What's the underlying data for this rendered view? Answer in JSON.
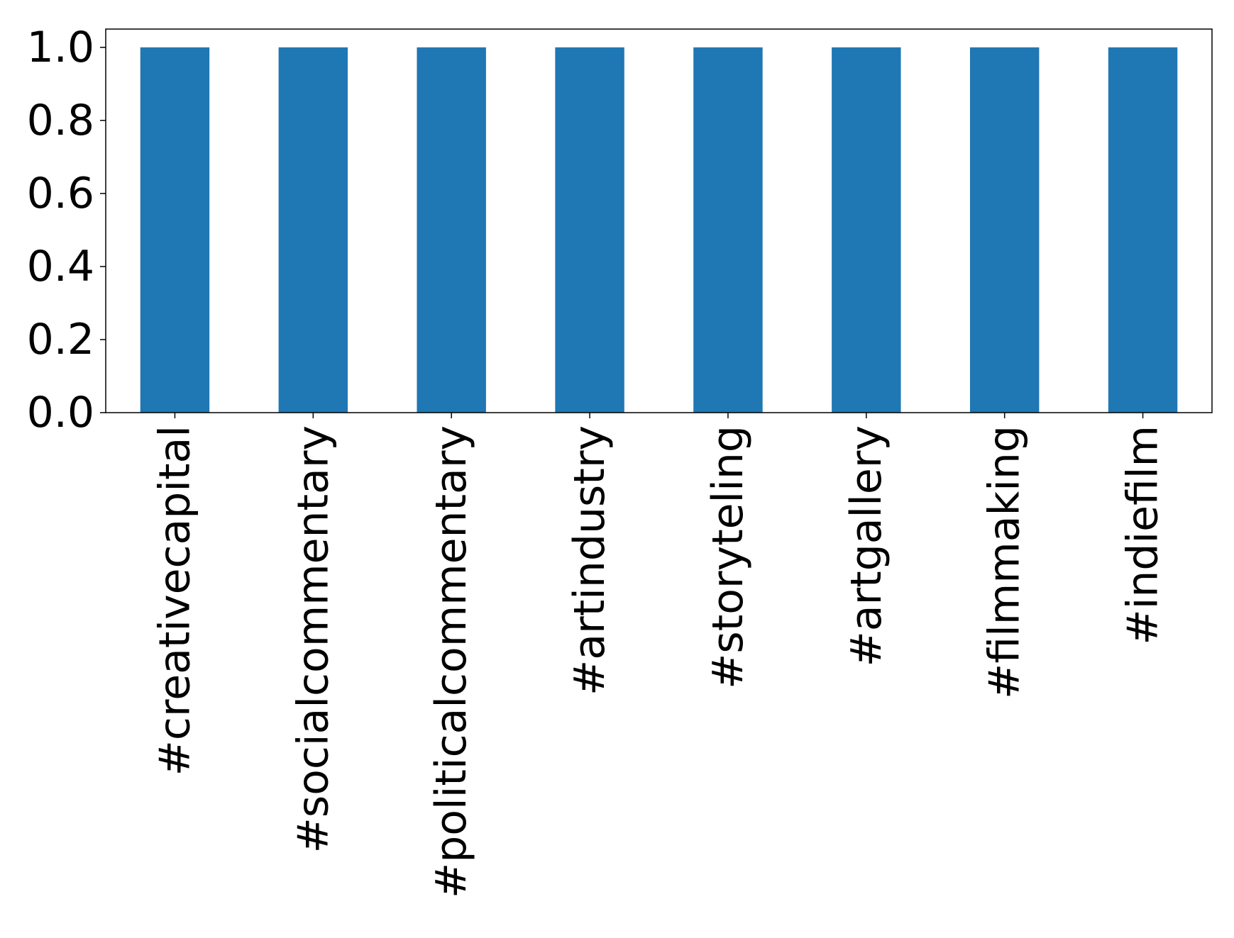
{
  "chart_data": {
    "type": "bar",
    "categories": [
      "#creativecapital",
      "#socialcommentary",
      "#politicalcommentary",
      "#artindustry",
      "#storyteling",
      "#artgallery",
      "#filmmaking",
      "#indiefilm"
    ],
    "values": [
      1,
      1,
      1,
      1,
      1,
      1,
      1,
      1
    ],
    "color": "#1f77b4",
    "ylim": [
      0,
      1.05
    ],
    "yticks": [
      {
        "value": 0,
        "label": "0.0"
      },
      {
        "value": 0.2,
        "label": "0.2"
      },
      {
        "value": 0.4,
        "label": "0.4"
      },
      {
        "value": 0.6,
        "label": "0.6"
      },
      {
        "value": 0.8,
        "label": "0.8"
      },
      {
        "value": 1,
        "label": "1.0"
      }
    ],
    "grid": false
  }
}
